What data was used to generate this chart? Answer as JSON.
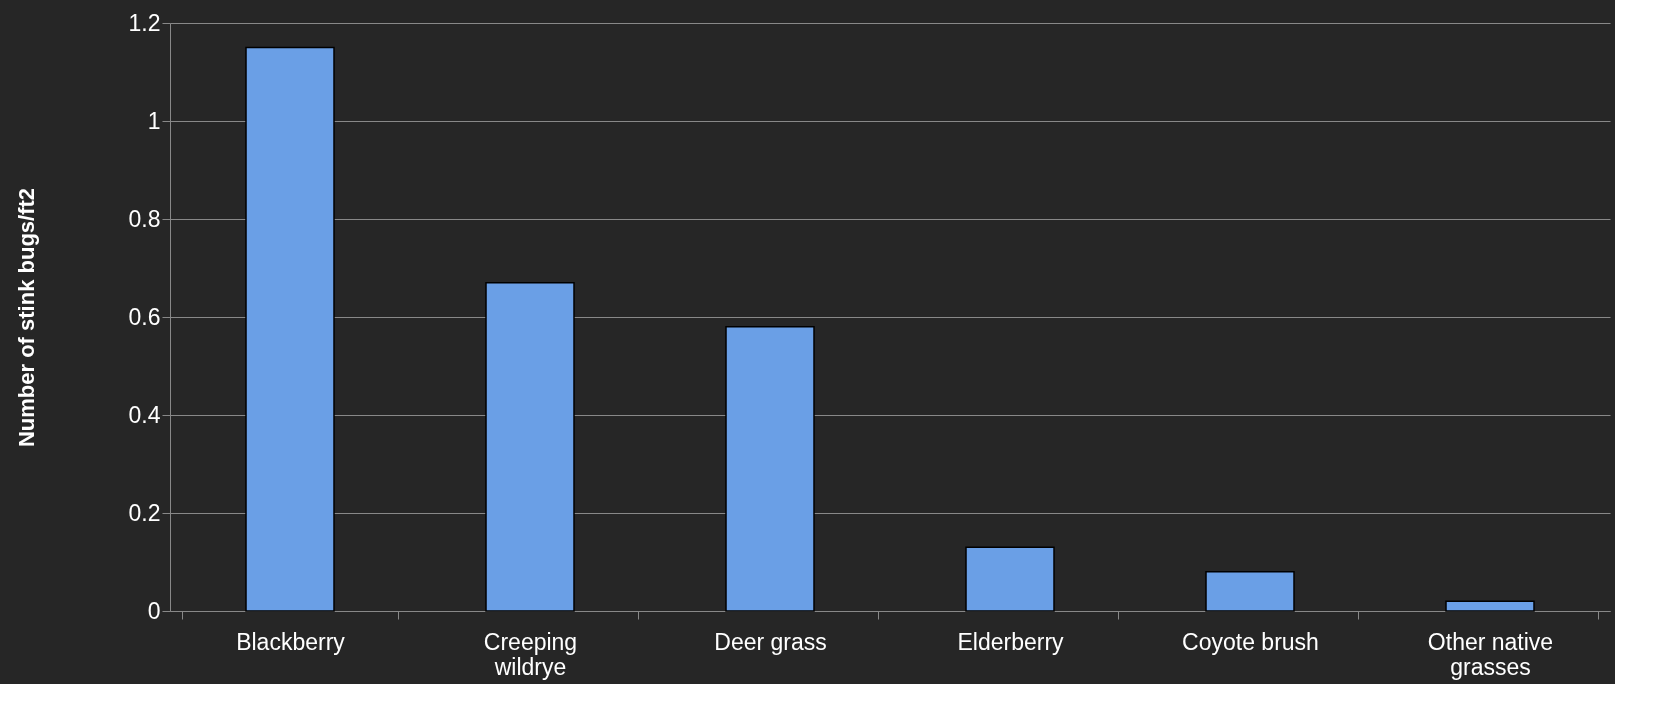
{
  "chart_data": {
    "type": "bar",
    "ylabel": "Number of stink bugs/ft2",
    "categories": [
      "Blackberry",
      "Creeping wildrye",
      "Deer grass",
      "Elderberry",
      "Coyote brush",
      "Other native grasses"
    ],
    "values": [
      1.15,
      0.67,
      0.58,
      0.13,
      0.08,
      0.02
    ],
    "color": "#6a9fe6",
    "ylim": [
      0,
      1.2
    ],
    "yticks": [
      0,
      0.2,
      0.4,
      0.6,
      0.8,
      1,
      1.2
    ],
    "grid": "y"
  }
}
